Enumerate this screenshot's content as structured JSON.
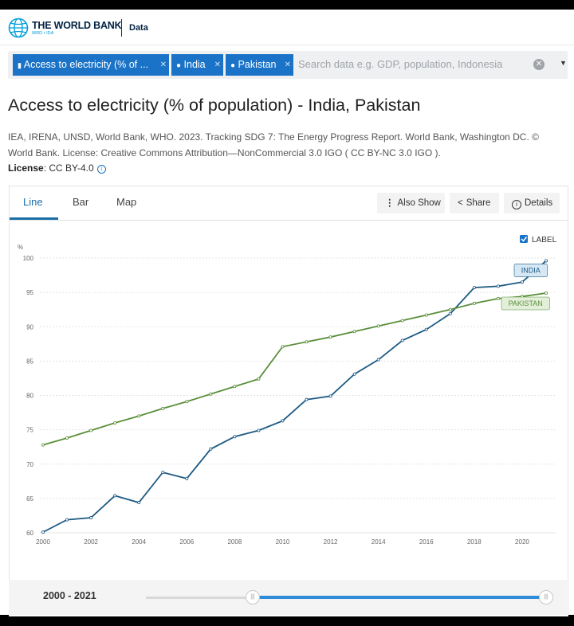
{
  "header": {
    "brand_name": "THE WORLD BANK",
    "brand_sub": "IBRD • IDA",
    "data_link": "Data"
  },
  "search": {
    "chips": [
      "Access to electricity (% of ...",
      "India",
      "Pakistan"
    ],
    "placeholder": "Search data e.g. GDP, population, Indonesia",
    "clear_icon": "clear-icon",
    "dropdown_icon": "caret-down-icon"
  },
  "page": {
    "title": "Access to electricity (% of population) - India, Pakistan",
    "citation": "IEA, IRENA, UNSD, World Bank, WHO. 2023. Tracking SDG 7: The Energy Progress Report. World Bank, Washington DC. © World Bank. License: Creative Commons Attribution—NonCommercial 3.0 IGO ( CC BY-NC 3.0 IGO ).",
    "license_label": "License",
    "license_value": ": CC BY-4.0"
  },
  "tabs": [
    "Line",
    "Bar",
    "Map"
  ],
  "toolbar": {
    "also_show": "Also Show",
    "share": "Share",
    "details": "Details"
  },
  "chart_data": {
    "type": "line",
    "ylabel": "%",
    "ylim": [
      60,
      100
    ],
    "yticks": [
      60,
      65,
      70,
      75,
      80,
      85,
      90,
      95,
      100
    ],
    "xlim": [
      2000,
      2021
    ],
    "xticks": [
      2000,
      2002,
      2004,
      2006,
      2008,
      2010,
      2012,
      2014,
      2016,
      2018,
      2020
    ],
    "label_toggle": "LABEL",
    "x": [
      2000,
      2001,
      2002,
      2003,
      2004,
      2005,
      2006,
      2007,
      2008,
      2009,
      2010,
      2011,
      2012,
      2013,
      2014,
      2015,
      2016,
      2017,
      2018,
      2019,
      2020,
      2021
    ],
    "series": [
      {
        "name": "INDIA",
        "color": "#1d5a83",
        "values": [
          60.1,
          61.9,
          62.2,
          65.4,
          64.4,
          68.8,
          67.9,
          72.2,
          74.0,
          74.9,
          76.3,
          79.4,
          79.9,
          83.1,
          85.2,
          88.0,
          89.6,
          91.9,
          95.7,
          95.9,
          96.5,
          99.6
        ]
      },
      {
        "name": "PAKISTAN",
        "color": "#5a8f3a",
        "values": [
          72.8,
          73.8,
          74.9,
          76.0,
          77.0,
          78.1,
          79.1,
          80.2,
          81.3,
          82.4,
          87.1,
          87.8,
          88.5,
          89.3,
          90.1,
          90.9,
          91.7,
          92.5,
          93.4,
          94.1,
          94.4,
          94.9
        ]
      }
    ]
  },
  "range": {
    "label": "2000 - 2021"
  }
}
